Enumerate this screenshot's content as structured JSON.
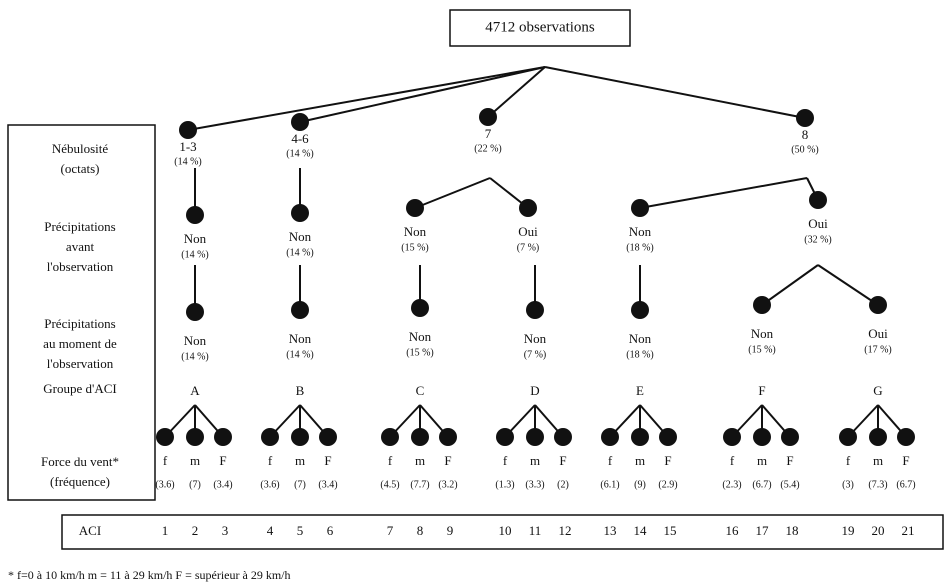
{
  "root": "4712 observations",
  "row_labels": [
    [
      "Nébulosité",
      "(octats)"
    ],
    [
      "Précipitations",
      "avant",
      "l'observation"
    ],
    [
      "Précipitations",
      "au moment de",
      "l'observation"
    ],
    [
      "Groupe d'ACI"
    ],
    [
      "Force du vent*",
      "(fréquence)"
    ]
  ],
  "level1": [
    {
      "label": "1-3",
      "pct": "(14 %)"
    },
    {
      "label": "4-6",
      "pct": "(14 %)"
    },
    {
      "label": "7",
      "pct": "(22 %)"
    },
    {
      "label": "8",
      "pct": "(50 %)"
    }
  ],
  "level2": [
    {
      "label": "Non",
      "pct": "(14 %)"
    },
    {
      "label": "Non",
      "pct": "(14 %)"
    },
    {
      "label": "Non",
      "pct": "(15 %)"
    },
    {
      "label": "Oui",
      "pct": "(7 %)"
    },
    {
      "label": "Non",
      "pct": "(18 %)"
    },
    {
      "label": "Oui",
      "pct": "(32 %)"
    }
  ],
  "level3": [
    {
      "label": "Non",
      "pct": "(14 %)"
    },
    {
      "label": "Non",
      "pct": "(14 %)"
    },
    {
      "label": "Non",
      "pct": "(15 %)"
    },
    {
      "label": "Non",
      "pct": "(7 %)"
    },
    {
      "label": "Non",
      "pct": "(18 %)"
    },
    {
      "label": "Non",
      "pct": "(15 %)"
    },
    {
      "label": "Oui",
      "pct": "(17 %)"
    }
  ],
  "groups": [
    {
      "name": "A",
      "wind": [
        "f",
        "m",
        "F"
      ],
      "freq": [
        "(3.6)",
        "(7)",
        "(3.4)"
      ]
    },
    {
      "name": "B",
      "wind": [
        "f",
        "m",
        "F"
      ],
      "freq": [
        "(3.6)",
        "(7)",
        "(3.4)"
      ]
    },
    {
      "name": "C",
      "wind": [
        "f",
        "m",
        "F"
      ],
      "freq": [
        "(4.5)",
        "(7.7)",
        "(3.2)"
      ]
    },
    {
      "name": "D",
      "wind": [
        "f",
        "m",
        "F"
      ],
      "freq": [
        "(1.3)",
        "(3.3)",
        "(2)"
      ]
    },
    {
      "name": "E",
      "wind": [
        "f",
        "m",
        "F"
      ],
      "freq": [
        "(6.1)",
        "(9)",
        "(2.9)"
      ]
    },
    {
      "name": "F",
      "wind": [
        "f",
        "m",
        "F"
      ],
      "freq": [
        "(2.3)",
        "(6.7)",
        "(5.4)"
      ]
    },
    {
      "name": "G",
      "wind": [
        "f",
        "m",
        "F"
      ],
      "freq": [
        "(3)",
        "(7.3)",
        "(6.7)"
      ]
    }
  ],
  "aci": {
    "label": "ACI",
    "numbers": [
      1,
      2,
      3,
      4,
      5,
      6,
      7,
      8,
      9,
      10,
      11,
      12,
      13,
      14,
      15,
      16,
      17,
      18,
      19,
      20,
      21
    ]
  },
  "footnote": "* f=0 à 10 km/h    m = 11 à 29 km/h    F = supérieur à 29 km/h"
}
